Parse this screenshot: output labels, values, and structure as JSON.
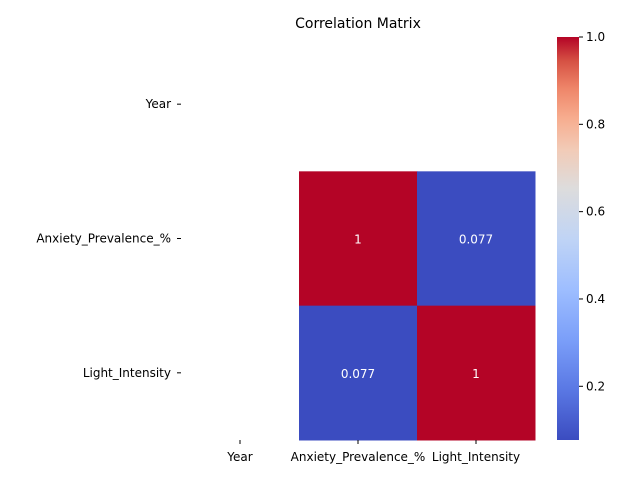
{
  "chart_data": {
    "type": "heatmap",
    "title": "Correlation Matrix",
    "xlabel": "",
    "ylabel": "",
    "row_labels": [
      "Year",
      "Anxiety_Prevalence_%",
      "Light_Intensity"
    ],
    "col_labels": [
      "Year",
      "Anxiety_Prevalence_%",
      "Light_Intensity"
    ],
    "values": [
      [
        null,
        null,
        null
      ],
      [
        null,
        1,
        0.077
      ],
      [
        null,
        0.077,
        1
      ]
    ],
    "cell_labels": [
      [
        "",
        "",
        ""
      ],
      [
        "",
        "1",
        "0.077"
      ],
      [
        "",
        "0.077",
        "1"
      ]
    ],
    "colormap": "coolwarm",
    "colorbar": {
      "min": 0.077,
      "max": 1.0,
      "ticks": [
        0.2,
        0.4,
        0.6,
        0.8,
        1.0
      ],
      "tick_labels": [
        "0.2",
        "0.4",
        "0.6",
        "0.8",
        "1.0"
      ]
    },
    "colors": {
      "low": "#3b4cc0",
      "high": "#b40426",
      "text": "#ffffff"
    }
  }
}
